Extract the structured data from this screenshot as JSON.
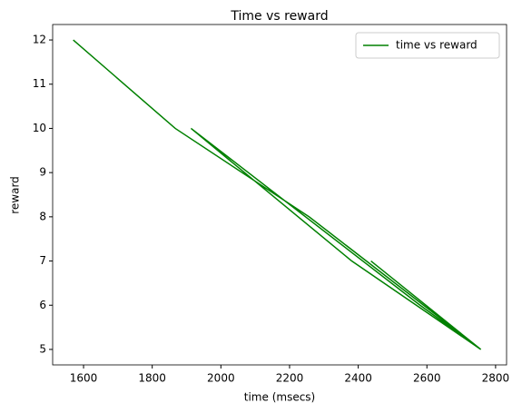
{
  "chart_data": {
    "type": "line",
    "title": "Time vs reward",
    "x_label": "time (msecs)",
    "y_label": "reward",
    "x": [
      1570,
      1867,
      2257,
      2757,
      2381,
      1913,
      2580,
      2757,
      2437
    ],
    "series": [
      {
        "name": "time vs reward",
        "color": "#008000",
        "values": [
          12,
          10,
          8,
          5,
          7,
          10,
          6,
          5,
          7
        ]
      }
    ],
    "xlim": [
      1510,
      2832
    ],
    "ylim": [
      4.65,
      12.35
    ],
    "xticks": [
      1600,
      1800,
      2000,
      2200,
      2400,
      2600,
      2800
    ],
    "yticks": [
      5,
      6,
      7,
      8,
      9,
      10,
      11,
      12
    ],
    "legend": "upper right"
  }
}
